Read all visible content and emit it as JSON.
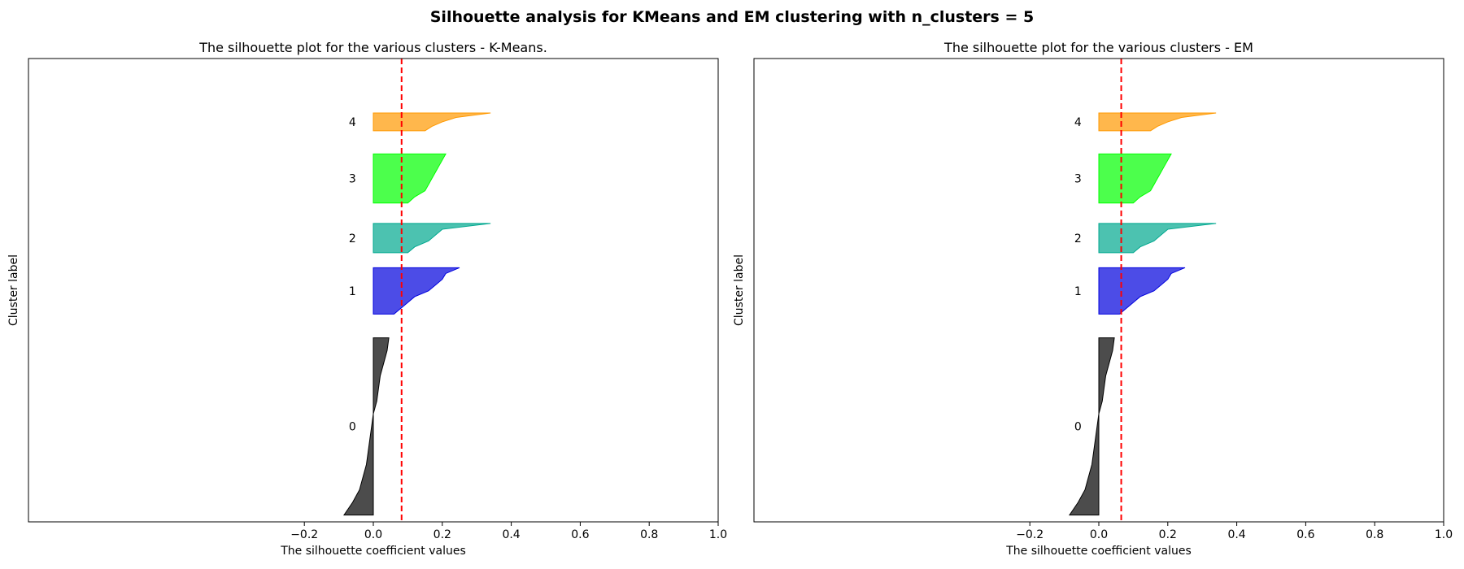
{
  "figure": {
    "suptitle": "Silhouette analysis for KMeans and EM clustering with n_clusters = 5"
  },
  "chart_data": [
    {
      "type": "area",
      "title": "The silhouette plot for the various clusters - K-Means.",
      "xlabel": "The silhouette coefficient values",
      "ylabel": "Cluster label",
      "xlim": [
        -1.0,
        1.0
      ],
      "ylim": [
        0,
        680
      ],
      "xticks": [
        -0.2,
        0.0,
        0.2,
        0.4,
        0.6,
        0.8,
        1.0
      ],
      "xtick_labels": [
        "−0.2",
        "0.0",
        "0.2",
        "0.4",
        "0.6",
        "0.8",
        "1.0"
      ],
      "yticks": false,
      "grid": false,
      "average_silhouette": 0.082,
      "average_line_color": "#ff0000",
      "clusters": [
        {
          "label": "0",
          "color": "#000000",
          "y_start": 10,
          "y_end": 270,
          "silhouette_profile": [
            0.045,
            0.04,
            0.03,
            0.02,
            0.015,
            0.01,
            0.0,
            -0.005,
            -0.01,
            -0.015,
            -0.02,
            -0.03,
            -0.04,
            -0.06,
            -0.085
          ]
        },
        {
          "label": "1",
          "color": "#0000dd",
          "y_start": 305,
          "y_end": 373,
          "silhouette_profile": [
            0.25,
            0.21,
            0.2,
            0.18,
            0.16,
            0.12,
            0.1,
            0.08,
            0.06
          ]
        },
        {
          "label": "2",
          "color": "#00a88f",
          "y_start": 395,
          "y_end": 438,
          "silhouette_profile": [
            0.34,
            0.2,
            0.18,
            0.16,
            0.12,
            0.1
          ]
        },
        {
          "label": "3",
          "color": "#00ff00",
          "y_start": 468,
          "y_end": 540,
          "silhouette_profile": [
            0.21,
            0.2,
            0.19,
            0.18,
            0.17,
            0.16,
            0.15,
            0.12,
            0.1
          ]
        },
        {
          "label": "4",
          "color": "#ff9900",
          "y_start": 574,
          "y_end": 600,
          "silhouette_profile": [
            0.34,
            0.24,
            0.2,
            0.17,
            0.15
          ]
        }
      ]
    },
    {
      "type": "area",
      "title": "The silhouette plot for the various clusters - EM",
      "xlabel": "The silhouette coefficient values",
      "ylabel": "Cluster label",
      "xlim": [
        -1.0,
        1.0
      ],
      "ylim": [
        0,
        680
      ],
      "xticks": [
        -0.2,
        0.0,
        0.2,
        0.4,
        0.6,
        0.8,
        1.0
      ],
      "xtick_labels": [
        "−0.2",
        "0.0",
        "0.2",
        "0.4",
        "0.6",
        "0.8",
        "1.0"
      ],
      "yticks": false,
      "grid": false,
      "average_silhouette": 0.065,
      "average_line_color": "#ff0000",
      "clusters": [
        {
          "label": "0",
          "color": "#000000",
          "y_start": 10,
          "y_end": 270,
          "silhouette_profile": [
            0.045,
            0.04,
            0.03,
            0.02,
            0.015,
            0.01,
            0.0,
            -0.005,
            -0.01,
            -0.015,
            -0.02,
            -0.03,
            -0.04,
            -0.06,
            -0.085
          ]
        },
        {
          "label": "1",
          "color": "#0000dd",
          "y_start": 305,
          "y_end": 373,
          "silhouette_profile": [
            0.25,
            0.21,
            0.2,
            0.18,
            0.16,
            0.12,
            0.1,
            0.08,
            0.06
          ]
        },
        {
          "label": "2",
          "color": "#00a88f",
          "y_start": 395,
          "y_end": 438,
          "silhouette_profile": [
            0.34,
            0.2,
            0.18,
            0.16,
            0.12,
            0.1
          ]
        },
        {
          "label": "3",
          "color": "#00ff00",
          "y_start": 468,
          "y_end": 540,
          "silhouette_profile": [
            0.21,
            0.2,
            0.19,
            0.18,
            0.17,
            0.16,
            0.15,
            0.12,
            0.1
          ]
        },
        {
          "label": "4",
          "color": "#ff9900",
          "y_start": 574,
          "y_end": 600,
          "silhouette_profile": [
            0.34,
            0.24,
            0.2,
            0.17,
            0.15
          ]
        }
      ]
    }
  ]
}
